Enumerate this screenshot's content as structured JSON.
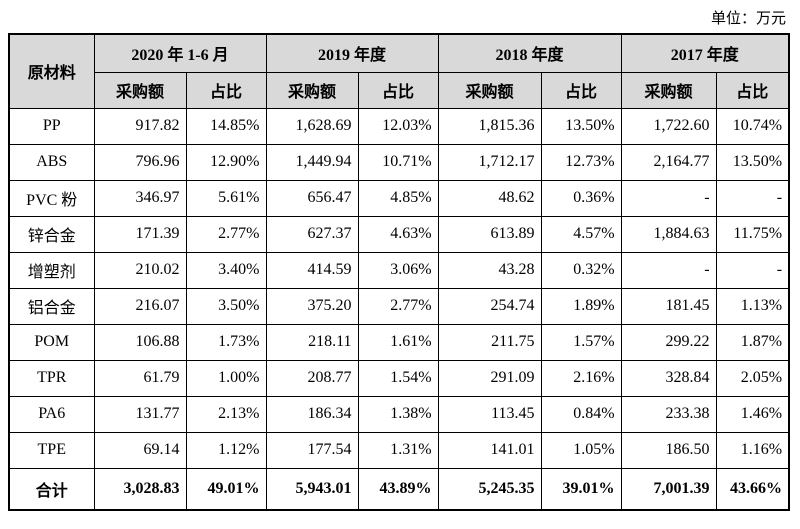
{
  "unit_label": "单位：万元",
  "header": {
    "material": "原材料",
    "periods": [
      "2020 年 1-6 月",
      "2019 年度",
      "2018 年度",
      "2017 年度"
    ],
    "sub_amount": "采购额",
    "sub_ratio": "占比"
  },
  "rows": [
    {
      "name": "PP",
      "values": [
        "917.82",
        "14.85%",
        "1,628.69",
        "12.03%",
        "1,815.36",
        "13.50%",
        "1,722.60",
        "10.74%"
      ]
    },
    {
      "name": "ABS",
      "values": [
        "796.96",
        "12.90%",
        "1,449.94",
        "10.71%",
        "1,712.17",
        "12.73%",
        "2,164.77",
        "13.50%"
      ]
    },
    {
      "name": "PVC 粉",
      "values": [
        "346.97",
        "5.61%",
        "656.47",
        "4.85%",
        "48.62",
        "0.36%",
        "-",
        "-"
      ]
    },
    {
      "name": "锌合金",
      "values": [
        "171.39",
        "2.77%",
        "627.37",
        "4.63%",
        "613.89",
        "4.57%",
        "1,884.63",
        "11.75%"
      ]
    },
    {
      "name": "增塑剂",
      "values": [
        "210.02",
        "3.40%",
        "414.59",
        "3.06%",
        "43.28",
        "0.32%",
        "-",
        "-"
      ]
    },
    {
      "name": "铝合金",
      "values": [
        "216.07",
        "3.50%",
        "375.20",
        "2.77%",
        "254.74",
        "1.89%",
        "181.45",
        "1.13%"
      ]
    },
    {
      "name": "POM",
      "values": [
        "106.88",
        "1.73%",
        "218.11",
        "1.61%",
        "211.75",
        "1.57%",
        "299.22",
        "1.87%"
      ]
    },
    {
      "name": "TPR",
      "values": [
        "61.79",
        "1.00%",
        "208.77",
        "1.54%",
        "291.09",
        "2.16%",
        "328.84",
        "2.05%"
      ]
    },
    {
      "name": "PA6",
      "values": [
        "131.77",
        "2.13%",
        "186.34",
        "1.38%",
        "113.45",
        "0.84%",
        "233.38",
        "1.46%"
      ]
    },
    {
      "name": "TPE",
      "values": [
        "69.14",
        "1.12%",
        "177.54",
        "1.31%",
        "141.01",
        "1.05%",
        "186.50",
        "1.16%"
      ]
    }
  ],
  "total": {
    "name": "合计",
    "values": [
      "3,028.83",
      "49.01%",
      "5,943.01",
      "43.89%",
      "5,245.35",
      "39.01%",
      "7,001.39",
      "43.66%"
    ]
  }
}
